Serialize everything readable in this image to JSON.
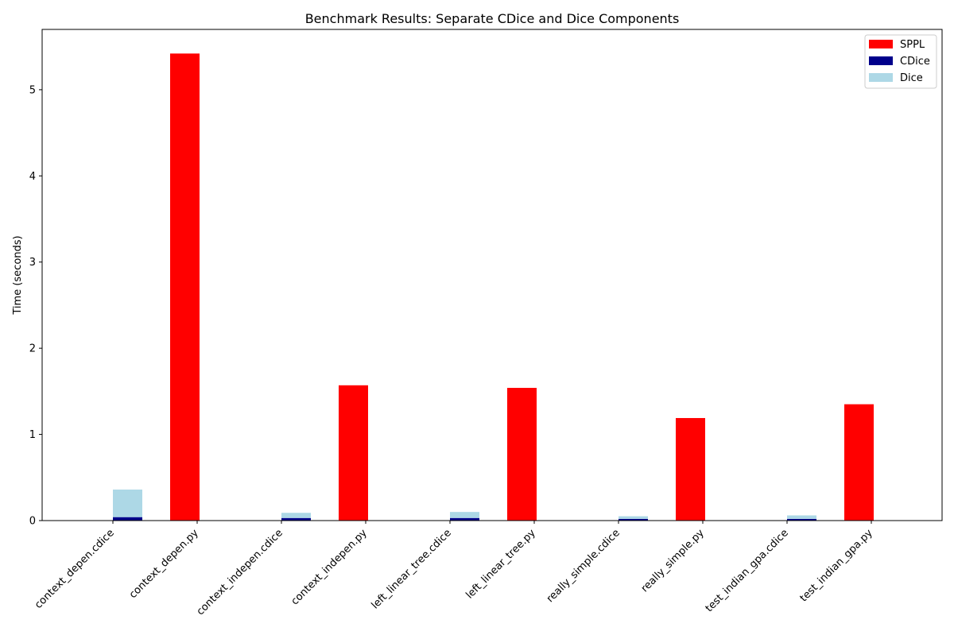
{
  "chart_data": {
    "type": "bar",
    "title": "Benchmark Results: Separate CDice and Dice Components",
    "xlabel": "",
    "ylabel": "Time (seconds)",
    "ylim": [
      0,
      5.7
    ],
    "yticks": [
      0,
      1,
      2,
      3,
      4,
      5
    ],
    "grid": false,
    "legend_position": "top-right",
    "categories": [
      "context_depen.cdice",
      "context_depen.py",
      "context_indepen.cdice",
      "context_indepen.py",
      "left_linear_tree.cdice",
      "left_linear_tree.py",
      "really_simple.cdice",
      "really_simple.py",
      "test_indian_gpa.cdice",
      "test_indian_gpa.py"
    ],
    "series": [
      {
        "name": "SPPL",
        "color": "#ff0000",
        "values": [
          0,
          5.42,
          0,
          1.57,
          0,
          1.54,
          0,
          1.19,
          0,
          1.35
        ]
      },
      {
        "name": "CDice",
        "color": "#00008b",
        "values": [
          0.04,
          0,
          0.03,
          0,
          0.03,
          0,
          0.02,
          0,
          0.02,
          0
        ],
        "stacked_base": true
      },
      {
        "name": "Dice",
        "color": "#add8e6",
        "values": [
          0.32,
          0,
          0.06,
          0,
          0.07,
          0,
          0.03,
          0,
          0.04,
          0
        ],
        "stacked_on": "CDice"
      }
    ]
  }
}
